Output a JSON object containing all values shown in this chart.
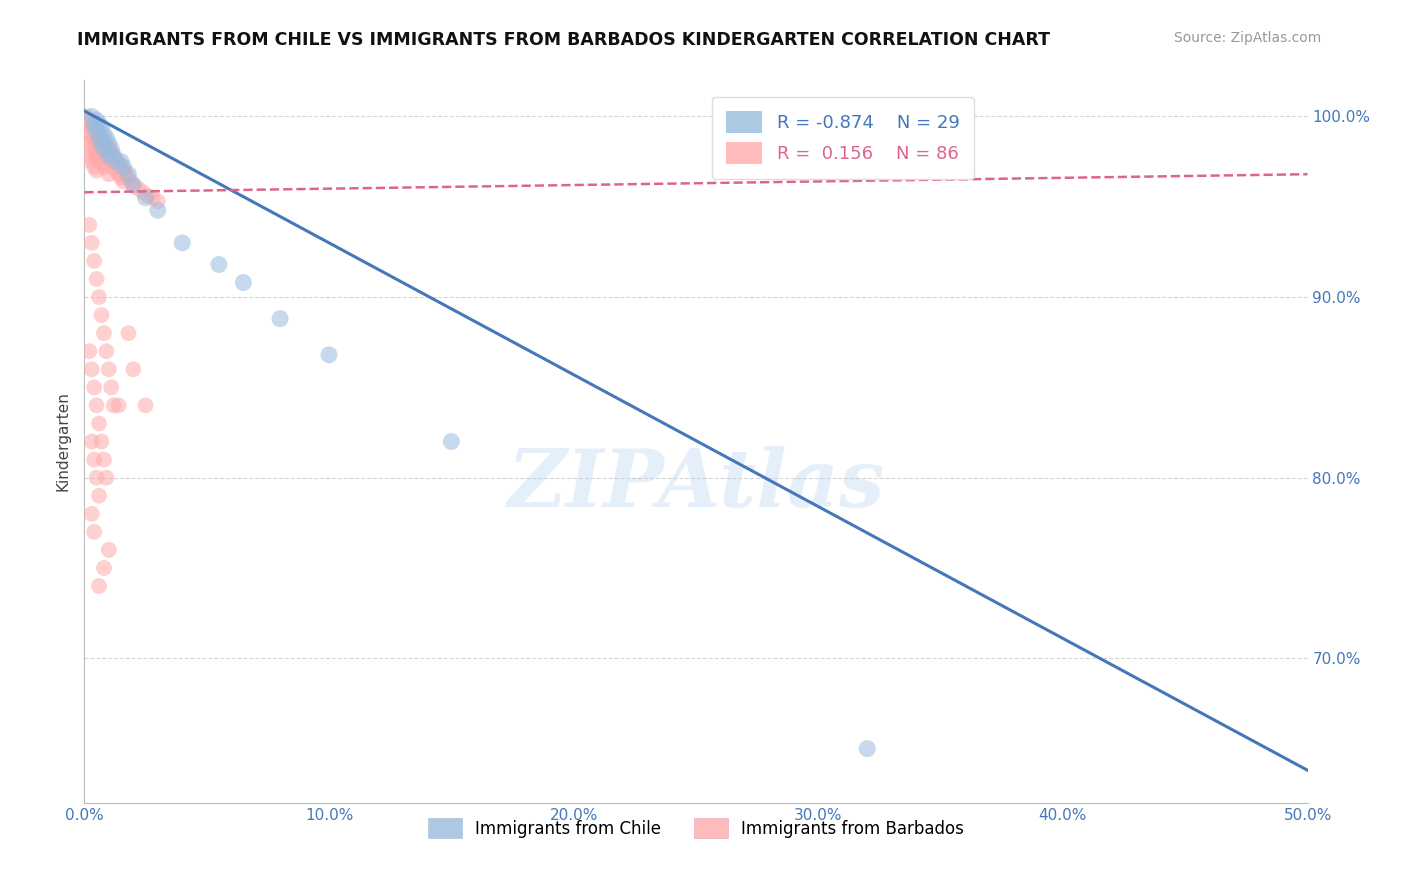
{
  "title": "IMMIGRANTS FROM CHILE VS IMMIGRANTS FROM BARBADOS KINDERGARTEN CORRELATION CHART",
  "source_text": "Source: ZipAtlas.com",
  "ylabel": "Kindergarten",
  "watermark": "ZIPAtlas",
  "x_min": 0.0,
  "x_max": 0.5,
  "y_min": 0.62,
  "y_max": 1.02,
  "x_ticks": [
    0.0,
    0.1,
    0.2,
    0.3,
    0.4,
    0.5
  ],
  "x_tick_labels": [
    "0.0%",
    "10.0%",
    "20.0%",
    "30.0%",
    "40.0%",
    "50.0%"
  ],
  "y_ticks": [
    0.7,
    0.8,
    0.9,
    1.0
  ],
  "y_tick_labels": [
    "70.0%",
    "80.0%",
    "90.0%",
    "100.0%"
  ],
  "grid_color": "#cccccc",
  "background_color": "#ffffff",
  "blue_color": "#99bbdd",
  "pink_color": "#ffaaaa",
  "blue_line_color": "#4477bb",
  "pink_line_color": "#dd6688",
  "legend_R_blue": "-0.874",
  "legend_N_blue": "29",
  "legend_R_pink": "0.156",
  "legend_N_pink": "86",
  "legend_label_blue": "Immigrants from Chile",
  "legend_label_pink": "Immigrants from Barbados",
  "blue_line_x0": 0.0,
  "blue_line_y0": 1.003,
  "blue_line_x1": 0.5,
  "blue_line_y1": 0.638,
  "pink_line_x0": 0.0,
  "pink_line_y0": 0.958,
  "pink_line_x1": 0.5,
  "pink_line_y1": 0.968,
  "blue_scatter_x": [
    0.003,
    0.004,
    0.005,
    0.005,
    0.006,
    0.006,
    0.007,
    0.007,
    0.008,
    0.008,
    0.009,
    0.01,
    0.01,
    0.011,
    0.012,
    0.013,
    0.015,
    0.016,
    0.018,
    0.02,
    0.025,
    0.03,
    0.04,
    0.055,
    0.065,
    0.08,
    0.1,
    0.32,
    0.15
  ],
  "blue_scatter_y": [
    1.0,
    0.995,
    0.998,
    0.992,
    0.996,
    0.988,
    0.994,
    0.985,
    0.99,
    0.982,
    0.988,
    0.985,
    0.978,
    0.982,
    0.978,
    0.975,
    0.975,
    0.972,
    0.968,
    0.962,
    0.955,
    0.948,
    0.93,
    0.918,
    0.908,
    0.888,
    0.868,
    0.65,
    0.82
  ],
  "pink_scatter_x": [
    0.001,
    0.001,
    0.001,
    0.002,
    0.002,
    0.002,
    0.002,
    0.003,
    0.003,
    0.003,
    0.003,
    0.004,
    0.004,
    0.004,
    0.004,
    0.005,
    0.005,
    0.005,
    0.005,
    0.006,
    0.006,
    0.006,
    0.007,
    0.007,
    0.007,
    0.008,
    0.008,
    0.008,
    0.009,
    0.009,
    0.01,
    0.01,
    0.01,
    0.011,
    0.011,
    0.012,
    0.012,
    0.013,
    0.013,
    0.014,
    0.014,
    0.015,
    0.015,
    0.016,
    0.016,
    0.017,
    0.018,
    0.019,
    0.02,
    0.022,
    0.024,
    0.026,
    0.028,
    0.03,
    0.002,
    0.003,
    0.004,
    0.005,
    0.006,
    0.007,
    0.008,
    0.009,
    0.01,
    0.011,
    0.012,
    0.002,
    0.003,
    0.004,
    0.005,
    0.006,
    0.007,
    0.008,
    0.009,
    0.003,
    0.004,
    0.005,
    0.006,
    0.003,
    0.004,
    0.014,
    0.018,
    0.02,
    0.025,
    0.01,
    0.008,
    0.006
  ],
  "pink_scatter_y": [
    1.0,
    0.995,
    0.988,
    0.998,
    0.992,
    0.985,
    0.978,
    0.996,
    0.99,
    0.982,
    0.975,
    0.994,
    0.988,
    0.98,
    0.972,
    0.992,
    0.986,
    0.978,
    0.97,
    0.99,
    0.984,
    0.976,
    0.988,
    0.982,
    0.974,
    0.986,
    0.98,
    0.972,
    0.984,
    0.978,
    0.982,
    0.976,
    0.968,
    0.98,
    0.974,
    0.978,
    0.972,
    0.976,
    0.97,
    0.974,
    0.968,
    0.972,
    0.966,
    0.97,
    0.964,
    0.968,
    0.966,
    0.964,
    0.962,
    0.96,
    0.958,
    0.956,
    0.955,
    0.953,
    0.94,
    0.93,
    0.92,
    0.91,
    0.9,
    0.89,
    0.88,
    0.87,
    0.86,
    0.85,
    0.84,
    0.87,
    0.86,
    0.85,
    0.84,
    0.83,
    0.82,
    0.81,
    0.8,
    0.82,
    0.81,
    0.8,
    0.79,
    0.78,
    0.77,
    0.84,
    0.88,
    0.86,
    0.84,
    0.76,
    0.75,
    0.74
  ]
}
